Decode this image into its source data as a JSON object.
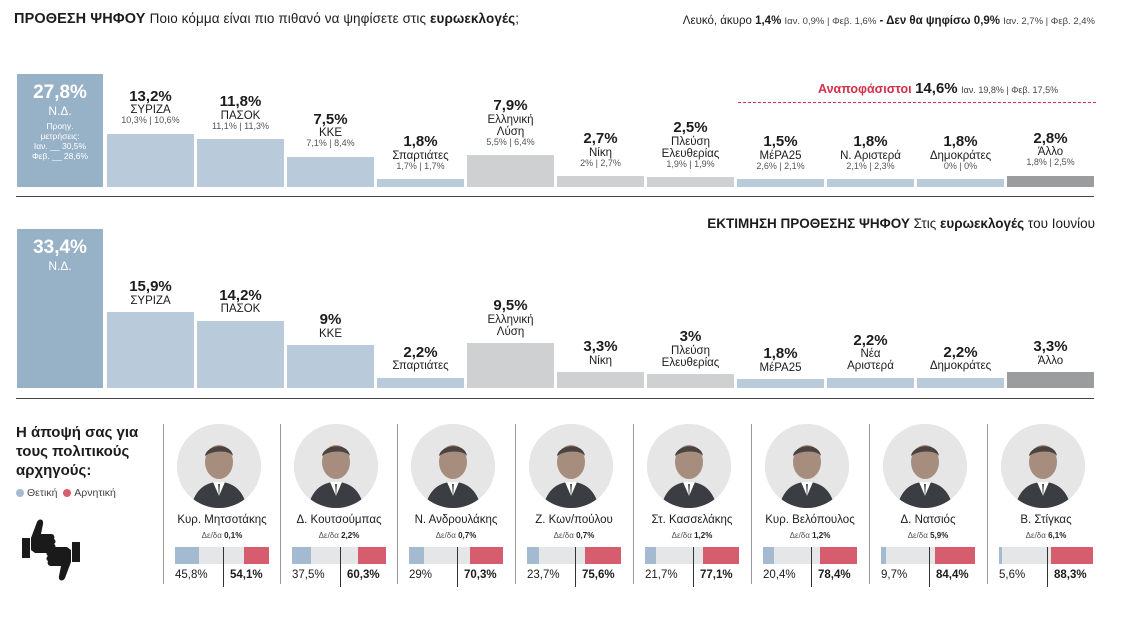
{
  "header": {
    "title": "ΠΡΟΘΕΣΗ ΨΗΦΟΥ",
    "subtitle_pre": "Ποιο κόμμα είναι πιο πιθανό να ψηφίσετε στις",
    "subtitle_bold": "ευρωεκλογές",
    "subtitle_post": ";",
    "blank_label": "Λευκό, άκυρο",
    "blank_value": "1,4%",
    "blank_prev": "Ιαν. 0,9% | Φεβ. 1,6%",
    "wont_vote_label": "- Δεν θα ψηφίσω",
    "wont_vote_value": "0,9%",
    "wont_vote_prev": "Ιαν. 2,7% | Φεβ. 2,4%"
  },
  "undecided": {
    "label": "Αναποφάσιστοι",
    "value": "14,6%",
    "prev": "Ιαν. 19,8% | Φεβ. 17,5%"
  },
  "nd_prev": {
    "line1": "Προηγ.",
    "line2": "μετρήσεις:",
    "line3": "Ιαν. __ 30,5%",
    "line4": "Φεβ. __ 28,6%"
  },
  "section2": {
    "title_bold": "ΕΚΤΙΜΗΣΗ ΠΡΟΘΕΣΗΣ ΨΗΦΟΥ",
    "title_pre": "Στις",
    "title_mid": "ευρωεκλογές",
    "title_post": "του Ιουνίου"
  },
  "leaders_section": {
    "title": "Η άποψή σας για τους πολιτικούς αρχηγούς:",
    "legend_positive": "Θετική",
    "legend_negative": "Αρνητική",
    "color_positive": "#a4bad0",
    "color_negative": "#d65d6d"
  },
  "chart_data": [
    {
      "type": "bar",
      "title": "ΠΡΟΘΕΣΗ ΨΗΦΟΥ",
      "categories": [
        "Ν.Δ.",
        "ΣΥΡΙΖΑ",
        "ΠΑΣΟΚ",
        "ΚΚΕ",
        "Σπαρτιάτες",
        "Ελληνική Λύση",
        "Νίκη",
        "Πλεύση Ελευθερίας",
        "ΜέΡΑ25",
        "Ν. Αριστερά",
        "Δημοκράτες",
        "Άλλο"
      ],
      "values": [
        27.8,
        13.2,
        11.8,
        7.5,
        1.8,
        7.9,
        2.7,
        2.5,
        1.5,
        1.8,
        1.8,
        2.8
      ],
      "value_labels": [
        "27,8%",
        "13,2%",
        "11,8%",
        "7,5%",
        "1,8%",
        "7,9%",
        "2,7%",
        "2,5%",
        "1,5%",
        "1,8%",
        "1,8%",
        "2,8%"
      ],
      "previous": [
        "",
        "10,3% | 10,6%",
        "11,1% | 11,3%",
        "7,1% | 8,4%",
        "1,7% | 1,7%",
        "5,5% | 6,4%",
        "2% | 2,7%",
        "1,9% | 1,9%",
        "2,6% | 2,1%",
        "2,1% | 2,3%",
        "0% | 0%",
        "1,8% | 2,5%"
      ]
    },
    {
      "type": "bar",
      "title": "ΕΚΤΙΜΗΣΗ ΠΡΟΘΕΣΗΣ ΨΗΦΟΥ",
      "categories": [
        "Ν.Δ.",
        "ΣΥΡΙΖΑ",
        "ΠΑΣΟΚ",
        "ΚΚΕ",
        "Σπαρτιάτες",
        "Ελληνική Λύση",
        "Νίκη",
        "Πλεύση Ελευθερίας",
        "ΜέΡΑ25",
        "Νέα Αριστερά",
        "Δημοκράτες",
        "Άλλο"
      ],
      "values": [
        33.4,
        15.9,
        14.2,
        9,
        2.2,
        9.5,
        3.3,
        3,
        1.8,
        2.2,
        2.2,
        3.3
      ],
      "value_labels": [
        "33,4%",
        "15,9%",
        "14,2%",
        "9%",
        "2,2%",
        "9,5%",
        "3,3%",
        "3%",
        "1,8%",
        "2,2%",
        "2,2%",
        "3,3%"
      ]
    },
    {
      "type": "bar",
      "title": "Η άποψή σας για τους πολιτικούς αρχηγούς:",
      "categories": [
        "Κυρ. Μητσοτάκης",
        "Δ. Κουτσούμπας",
        "Ν. Ανδρουλάκης",
        "Ζ. Κων/πούλου",
        "Στ. Κασσελάκης",
        "Κυρ. Βελόπουλος",
        "Δ. Νατσιός",
        "Β. Στίγκας"
      ],
      "series": [
        {
          "name": "Θετική",
          "values": [
            45.8,
            37.5,
            29,
            23.7,
            21.7,
            20.4,
            9.7,
            5.6
          ],
          "labels": [
            "45,8%",
            "37,5%",
            "29%",
            "23,7%",
            "21,7%",
            "20,4%",
            "9,7%",
            "5,6%"
          ]
        },
        {
          "name": "Αρνητική",
          "values": [
            54.1,
            60.3,
            70.3,
            75.6,
            77.1,
            78.4,
            84.4,
            88.3
          ],
          "labels": [
            "54,1%",
            "60,3%",
            "70,3%",
            "75,6%",
            "77,1%",
            "78,4%",
            "84,4%",
            "88,3%"
          ]
        }
      ],
      "dk_label": "Δε/δα",
      "dk_values": [
        "0,1%",
        "2,2%",
        "0,7%",
        "0,7%",
        "1,2%",
        "1,2%",
        "5,9%",
        "6,1%"
      ]
    }
  ]
}
